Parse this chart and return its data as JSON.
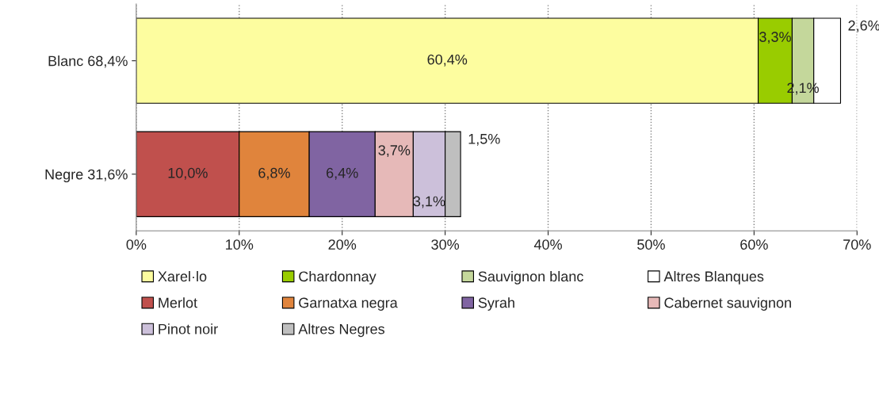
{
  "chart_data": {
    "type": "bar",
    "orientation": "horizontal",
    "stacked": true,
    "categories": [
      "Blanc 68,4%",
      "Negre 31,6%"
    ],
    "series": [
      {
        "name": "Xarel·lo",
        "color": "#fdfd9f",
        "values": [
          60.4,
          null
        ],
        "value_labels": [
          "60,4%",
          null
        ]
      },
      {
        "name": "Chardonnay",
        "color": "#99cc00",
        "values": [
          3.3,
          null
        ],
        "value_labels": [
          "3,3%",
          null
        ]
      },
      {
        "name": "Sauvignon blanc",
        "color": "#c4d79b",
        "values": [
          2.1,
          null
        ],
        "value_labels": [
          "2,1%",
          null
        ]
      },
      {
        "name": "Altres Blanques",
        "color": "#ffffff",
        "values": [
          2.6,
          null
        ],
        "value_labels": [
          "2,6%",
          null
        ]
      },
      {
        "name": "Merlot",
        "color": "#c0504d",
        "values": [
          null,
          10.0
        ],
        "value_labels": [
          null,
          "10,0%"
        ]
      },
      {
        "name": "Garnatxa negra",
        "color": "#e0843c",
        "values": [
          null,
          6.8
        ],
        "value_labels": [
          null,
          "6,8%"
        ]
      },
      {
        "name": "Syrah",
        "color": "#8064a2",
        "values": [
          null,
          6.4
        ],
        "value_labels": [
          null,
          "6,4%"
        ]
      },
      {
        "name": "Cabernet sauvignon",
        "color": "#e6b9b8",
        "values": [
          null,
          3.7
        ],
        "value_labels": [
          null,
          "3,7%"
        ]
      },
      {
        "name": "Pinot noir",
        "color": "#ccc0da",
        "values": [
          null,
          3.1
        ],
        "value_labels": [
          null,
          "3,1%"
        ]
      },
      {
        "name": "Altres Negres",
        "color": "#bfbfbf",
        "values": [
          null,
          1.5
        ],
        "value_labels": [
          null,
          "1,5%"
        ]
      }
    ],
    "xlim": [
      0,
      70
    ],
    "xticks": [
      {
        "value": 0,
        "label": "0%"
      },
      {
        "value": 10,
        "label": "10%"
      },
      {
        "value": 20,
        "label": "20%"
      },
      {
        "value": 30,
        "label": "30%"
      },
      {
        "value": 40,
        "label": "40%"
      },
      {
        "value": 50,
        "label": "50%"
      },
      {
        "value": 60,
        "label": "60%"
      },
      {
        "value": 70,
        "label": "70%"
      }
    ],
    "grid": "x",
    "legend": "bottom"
  }
}
